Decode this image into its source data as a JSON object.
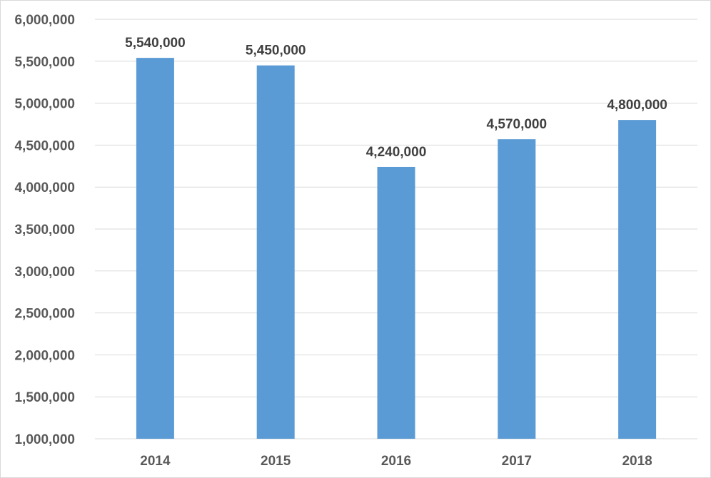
{
  "chart_data": {
    "type": "bar",
    "categories": [
      "2014",
      "2015",
      "2016",
      "2017",
      "2018"
    ],
    "values": [
      5540000,
      5450000,
      4240000,
      4570000,
      4800000
    ],
    "data_labels": [
      "5,540,000",
      "5,450,000",
      "4,240,000",
      "4,570,000",
      "4,800,000"
    ],
    "title": "",
    "xlabel": "",
    "ylabel": "",
    "ylim": [
      1000000,
      6000000
    ],
    "yticks": [
      1000000,
      1500000,
      2000000,
      2500000,
      3000000,
      3500000,
      4000000,
      4500000,
      5000000,
      5500000,
      6000000
    ],
    "ytick_labels": [
      "1,000,000",
      "1,500,000",
      "2,000,000",
      "2,500,000",
      "3,000,000",
      "3,500,000",
      "4,000,000",
      "4,500,000",
      "5,000,000",
      "5,500,000",
      "6,000,000"
    ],
    "grid": true,
    "legend": "none",
    "bar_color": "#5b9bd5"
  }
}
